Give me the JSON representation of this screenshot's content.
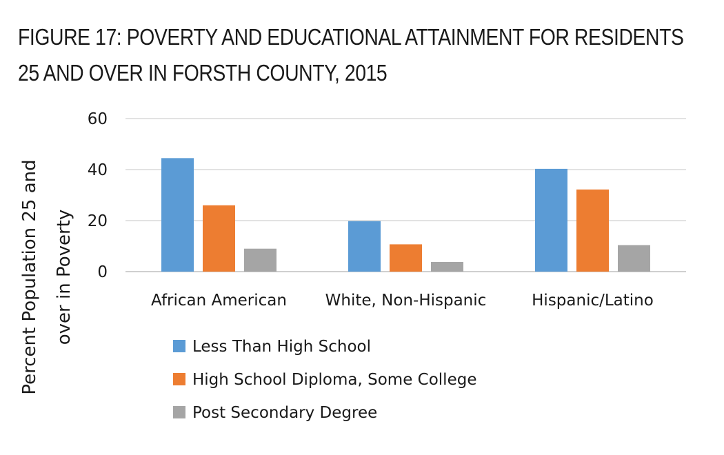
{
  "title_lines": [
    "FIGURE 17: POVERTY AND EDUCATIONAL ATTAINMENT FOR RESIDENTS",
    "25 AND OVER IN FORSTH COUNTY, 2015"
  ],
  "chart_data": {
    "type": "bar",
    "title": "FIGURE 17: POVERTY AND EDUCATIONAL ATTAINMENT FOR RESIDENTS 25 AND OVER IN FORSTH COUNTY, 2015",
    "categories": [
      "African American",
      "White, Non-Hispanic",
      "Hispanic/Latino"
    ],
    "series": [
      {
        "name": "Less Than High School",
        "color": "#5b9bd5",
        "values": [
          44.5,
          19.8,
          40.3
        ]
      },
      {
        "name": "High School Diploma, Some College",
        "color": "#ed7d31",
        "values": [
          26.0,
          10.7,
          32.2
        ]
      },
      {
        "name": "Post Secondary Degree",
        "color": "#a5a5a5",
        "values": [
          9.0,
          3.8,
          10.4
        ]
      }
    ],
    "ylabel_lines": [
      "Percent Population 25 and",
      "over in Poverty"
    ],
    "xlabel": "",
    "ylim": [
      0,
      60
    ],
    "yticks": [
      0,
      20,
      40,
      60
    ],
    "grid": true,
    "legend_position": "bottom"
  }
}
